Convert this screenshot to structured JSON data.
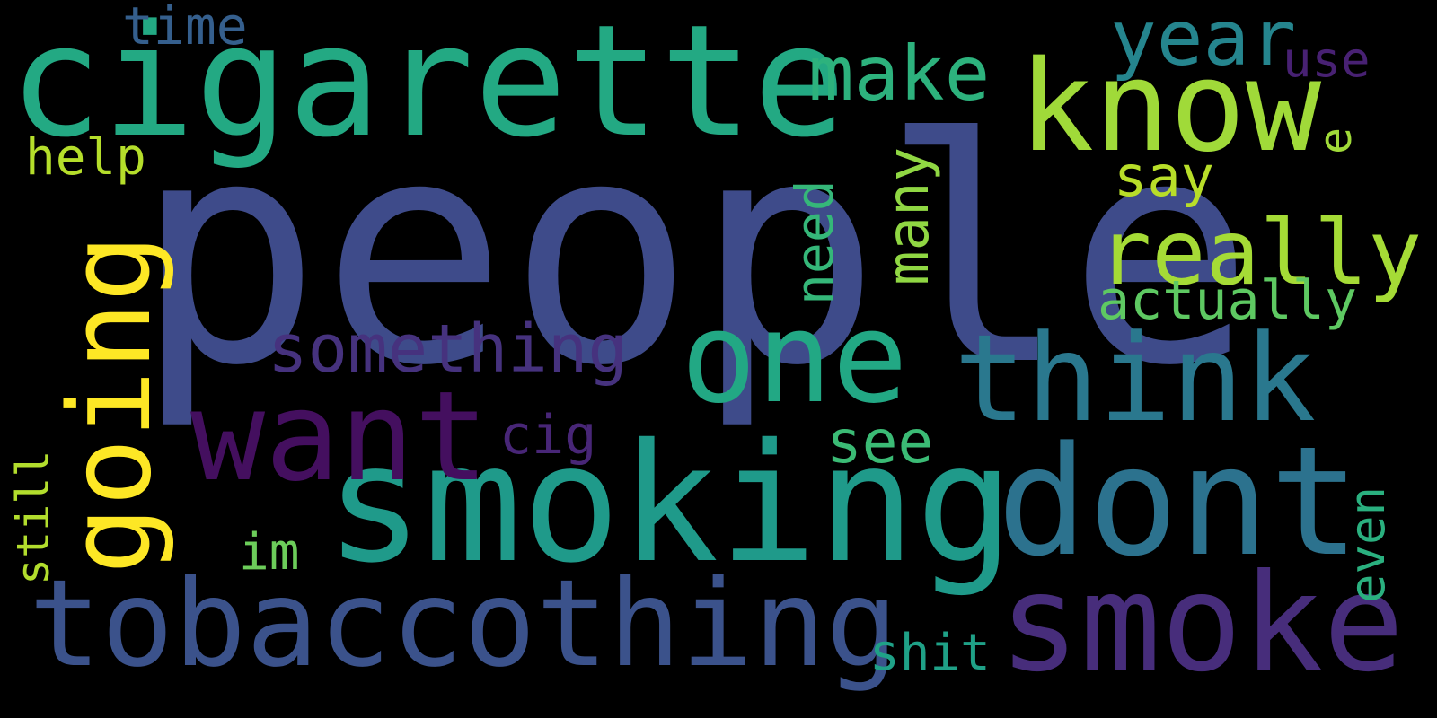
{
  "wordcloud": {
    "background": "#000000",
    "words": [
      {
        "text": "people",
        "color": "#3e4b8a",
        "vertical": false
      },
      {
        "text": "cigarette",
        "color": "#23a983",
        "vertical": false
      },
      {
        "text": "smoking",
        "color": "#1f9a8a",
        "vertical": false
      },
      {
        "text": "tobaccothing",
        "color": "#3b528b",
        "vertical": false
      },
      {
        "text": "dont",
        "color": "#2c728e",
        "vertical": false
      },
      {
        "text": "smoke",
        "color": "#472d7b",
        "vertical": false
      },
      {
        "text": "going",
        "color": "#fde725",
        "vertical": true
      },
      {
        "text": "want",
        "color": "#440f5f",
        "vertical": false
      },
      {
        "text": "one",
        "color": "#22a884",
        "vertical": false
      },
      {
        "text": "think",
        "color": "#2a788e",
        "vertical": false
      },
      {
        "text": "know",
        "color": "#a0da39",
        "vertical": false
      },
      {
        "text": "really",
        "color": "#a5db36",
        "vertical": false
      },
      {
        "text": "year",
        "color": "#25858e",
        "vertical": false
      },
      {
        "text": "make",
        "color": "#2db27d",
        "vertical": false
      },
      {
        "text": "something",
        "color": "#46327e",
        "vertical": false
      },
      {
        "text": "actually",
        "color": "#5ec962",
        "vertical": false
      },
      {
        "text": "many",
        "color": "#90d743",
        "vertical": true
      },
      {
        "text": "need",
        "color": "#35b779",
        "vertical": true
      },
      {
        "text": "see",
        "color": "#3bbb75",
        "vertical": false
      },
      {
        "text": "even",
        "color": "#2ab07f",
        "vertical": true
      },
      {
        "text": "time",
        "color": "#355f8d",
        "vertical": false
      },
      {
        "text": "use",
        "color": "#482173",
        "vertical": false
      },
      {
        "text": "say",
        "color": "#b8de29",
        "vertical": false
      },
      {
        "text": "help",
        "color": "#b5de2b",
        "vertical": false
      },
      {
        "text": "cig",
        "color": "#482677",
        "vertical": false
      },
      {
        "text": "im",
        "color": "#6ccd5a",
        "vertical": false
      },
      {
        "text": "still",
        "color": "#b2dd2d",
        "vertical": true
      },
      {
        "text": "shit",
        "color": "#1fa187",
        "vertical": false
      },
      {
        "text": "e",
        "color": "#a0da39",
        "vertical": true
      }
    ]
  }
}
